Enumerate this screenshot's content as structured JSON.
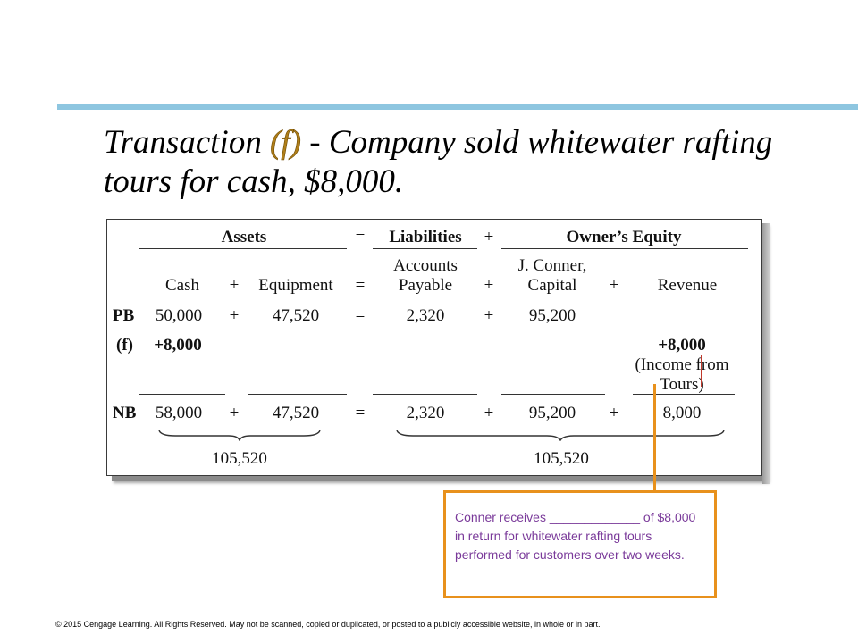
{
  "title": {
    "prefix": "Transaction",
    "letter": "(f)",
    "rest": "- Company sold whitewater rafting tours for cash, $8,000."
  },
  "equation": {
    "headers": {
      "assets": "Assets",
      "eq": "=",
      "liabilities": "Liabilities",
      "plus": "+",
      "owners_equity": "Owner’s Equity"
    },
    "columns": {
      "cash": "Cash",
      "plus1": "+",
      "equipment": "Equipment",
      "eq": "=",
      "ap_line1": "Accounts",
      "ap_line2": "Payable",
      "plus2": "+",
      "cap_line1": "J. Conner,",
      "cap_line2": "Capital",
      "plus3": "+",
      "revenue": "Revenue"
    },
    "rows": {
      "pb": {
        "label": "PB",
        "cash": "50,000",
        "plus1": "+",
        "equipment": "47,520",
        "eq": "=",
        "ap": "2,320",
        "plus2": "+",
        "capital": "95,200"
      },
      "f": {
        "label": "(f)",
        "cash": "+8,000",
        "revenue": "+8,000",
        "revenue_note_line1": "(Income from",
        "revenue_note_line2": "Tours)"
      },
      "nb": {
        "label": "NB",
        "cash": "58,000",
        "plus1": "+",
        "equipment": "47,520",
        "eq": "=",
        "ap": "2,320",
        "plus2": "+",
        "capital": "95,200",
        "plus3": "+",
        "revenue": "8,000"
      }
    },
    "totals": {
      "assets": "105,520",
      "liabilities_equity": "105,520"
    }
  },
  "note": {
    "text": "Conner receives _____________ of $8,000 in return for whitewater rafting tours performed for customers over two weeks."
  },
  "footer": {
    "copyright": "© 2015 Cengage Learning. All Rights Reserved. May not be scanned, copied or duplicated, or posted to a publicly accessible website, in whole or in part."
  },
  "colors": {
    "rule": "#8ec6e0",
    "letter": "#b07f1a",
    "note_border": "#e8911c",
    "note_text": "#7a3a9a"
  }
}
